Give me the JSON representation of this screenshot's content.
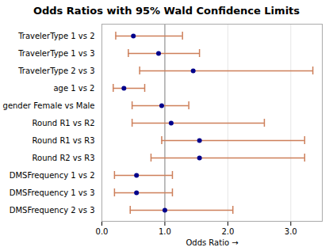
{
  "chart_data": {
    "type": "forest",
    "orientation": "horizontal",
    "title": "Odds Ratios with 95% Wald Confidence Limits",
    "xlabel": "Odds Ratio",
    "categories": [
      "TravelerType 1 vs 2",
      "TravelerType 1 vs 3",
      "TravelerType 2 vs 3",
      "age 1 vs 2",
      "gender Female vs Male",
      "Round R1 vs R2",
      "Round R1 vs R3",
      "Round R2 vs R3",
      "DMSFrequency 1 vs 2",
      "DMSFrequency 1 vs 3",
      "DMSFrequency 2 vs 3"
    ],
    "values": [
      0.5,
      0.9,
      1.45,
      0.35,
      0.95,
      1.1,
      1.55,
      1.55,
      0.55,
      0.55,
      1.0
    ],
    "lower": [
      0.22,
      0.42,
      0.6,
      0.18,
      0.48,
      0.48,
      0.95,
      0.78,
      0.2,
      0.2,
      0.45
    ],
    "upper": [
      1.28,
      1.55,
      3.35,
      0.68,
      1.38,
      2.58,
      3.22,
      3.22,
      1.12,
      1.12,
      2.08
    ],
    "color": "#00008B",
    "error_color": "#CD7F5A",
    "reference_line": {
      "value": 1,
      "color": "#888888"
    },
    "xlim": [
      0,
      3.5
    ],
    "xticks": [
      0,
      1,
      2,
      3
    ],
    "grid": true
  }
}
